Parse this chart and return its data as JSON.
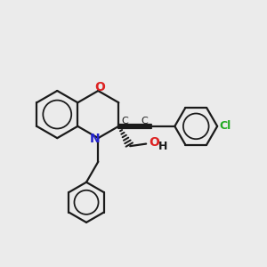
{
  "background_color": "#ebebeb",
  "bond_color": "#1a1a1a",
  "n_color": "#2222cc",
  "o_color": "#dd2222",
  "cl_color": "#22aa22",
  "bond_width": 1.6,
  "figsize": [
    3.0,
    3.0
  ],
  "dpi": 100,
  "xlim": [
    -2.8,
    4.2
  ],
  "ylim": [
    -2.8,
    2.2
  ]
}
